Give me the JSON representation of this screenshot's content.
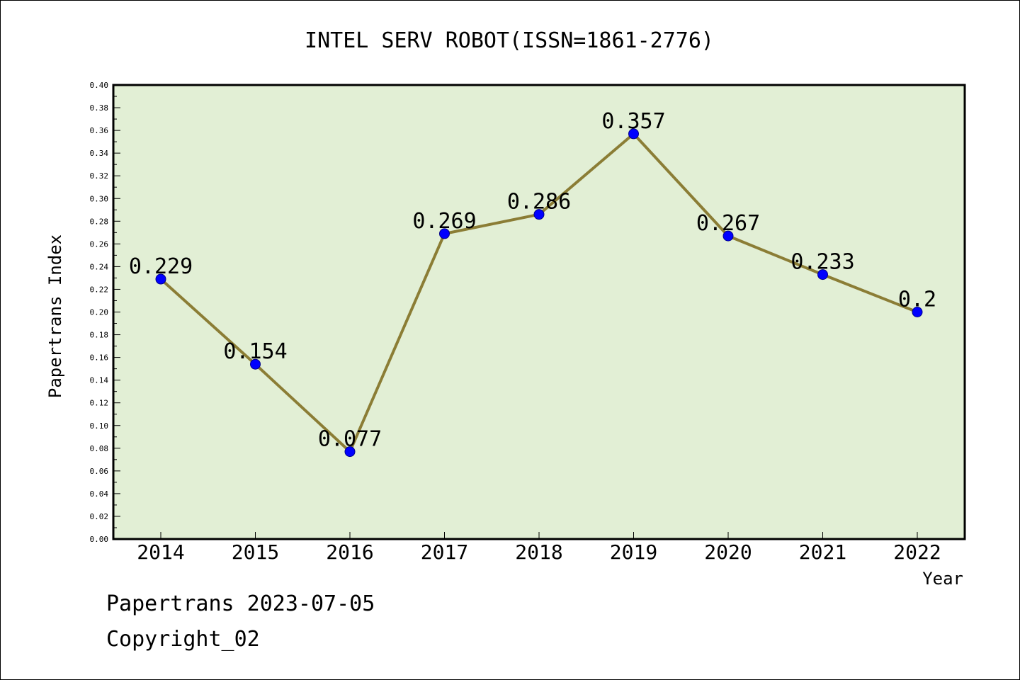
{
  "chart_data": {
    "type": "line",
    "title": "INTEL SERV ROBOT(ISSN=1861-2776)",
    "xlabel": "Year",
    "ylabel": "Papertrans Index",
    "categories": [
      "2014",
      "2015",
      "2016",
      "2017",
      "2018",
      "2019",
      "2020",
      "2021",
      "2022"
    ],
    "values": [
      0.229,
      0.154,
      0.077,
      0.269,
      0.286,
      0.357,
      0.267,
      0.233,
      0.2
    ],
    "data_labels": [
      "0.229",
      "0.154",
      "0.077",
      "0.269",
      "0.286",
      "0.357",
      "0.267",
      "0.233",
      "0.2"
    ],
    "ylim": [
      0,
      0.4
    ],
    "yticks": [
      "0.00",
      "0.02",
      "0.04",
      "0.06",
      "0.08",
      "0.10",
      "0.12",
      "0.14",
      "0.16",
      "0.18",
      "0.20",
      "0.22",
      "0.24",
      "0.26",
      "0.28",
      "0.30",
      "0.32",
      "0.34",
      "0.36",
      "0.38",
      "0.40"
    ],
    "grid": false,
    "colors": {
      "plot_background": "#e2efd5",
      "line": "#8b7d35",
      "marker": "#0000ff"
    }
  },
  "footer": {
    "line1": "Papertrans 2023-07-05",
    "line2": "Copyright_02"
  }
}
